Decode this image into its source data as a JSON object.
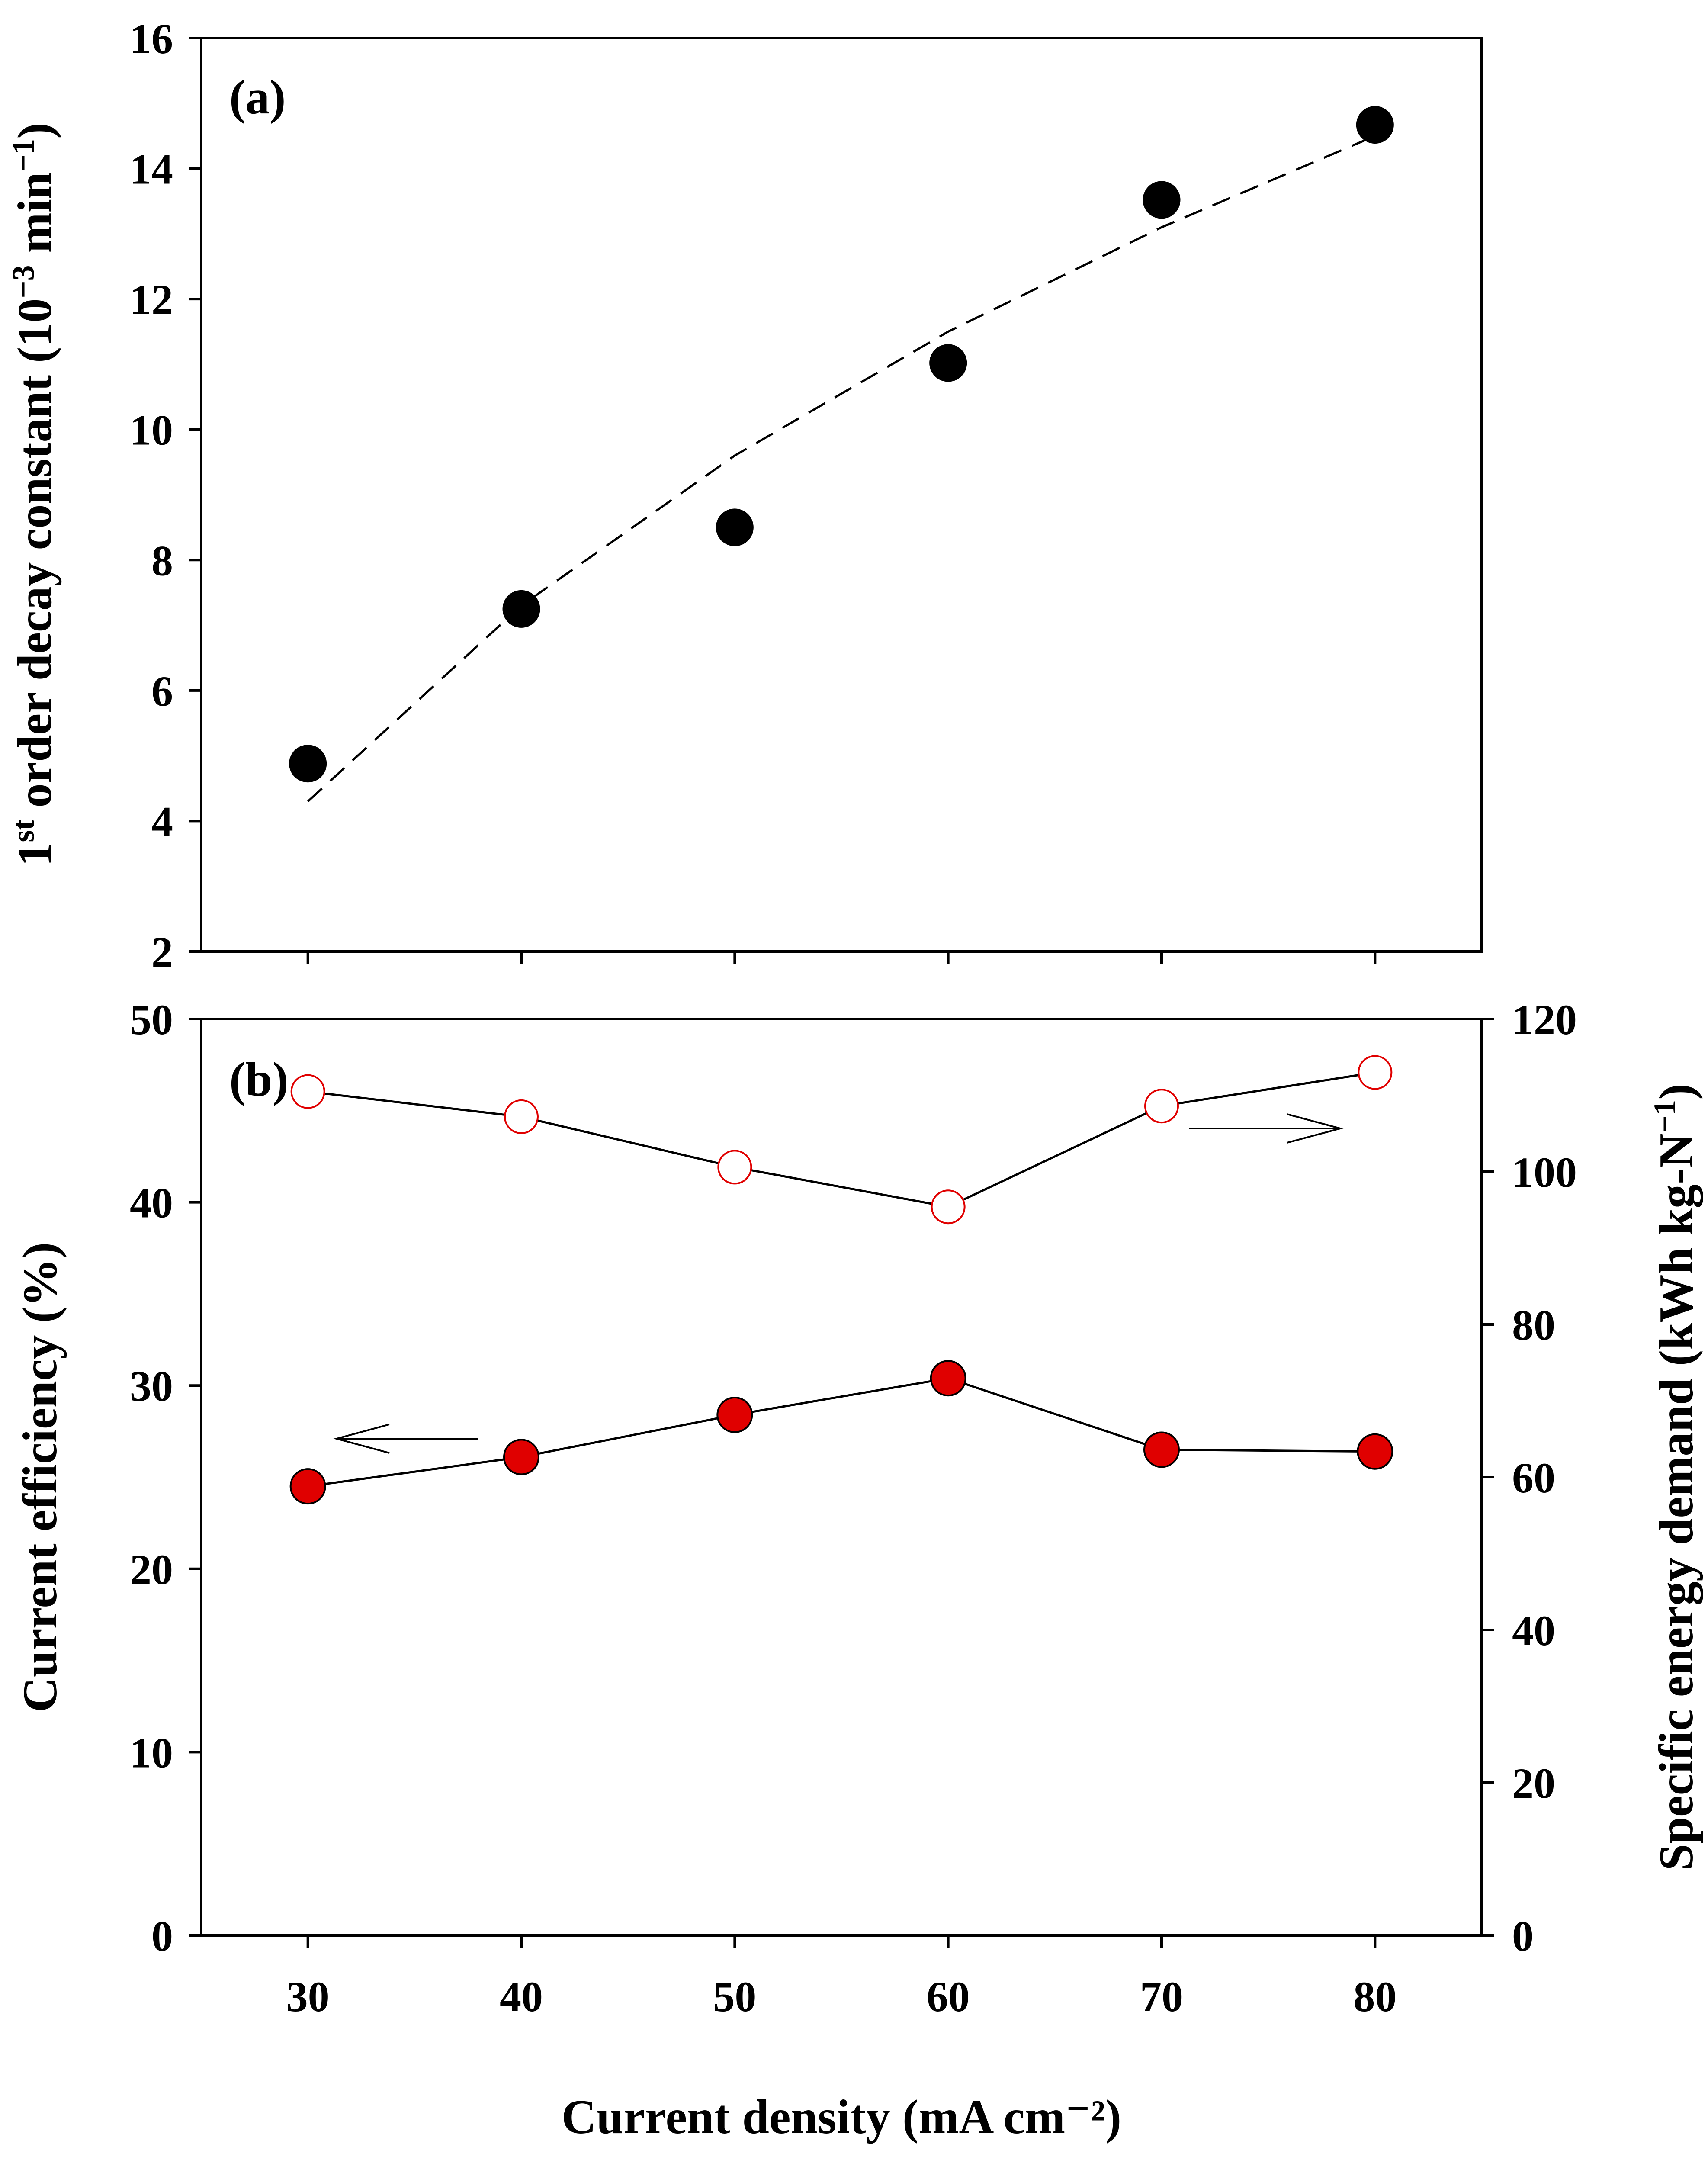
{
  "chart_data": [
    {
      "panel": "(a)",
      "type": "scatter",
      "title": "",
      "xlabel": "Current density (mA cm⁻²)",
      "ylabel_parts": [
        "1",
        "st",
        " order decay constant (10",
        "−3",
        " min",
        "−1",
        ")"
      ],
      "xlim": [
        25,
        85
      ],
      "ylim": [
        2,
        16
      ],
      "yticks": [
        2,
        4,
        6,
        8,
        10,
        12,
        14,
        16
      ],
      "x": [
        30,
        40,
        50,
        60,
        70,
        80
      ],
      "series": [
        {
          "name": "1st order decay constant",
          "marker": "filled-circle",
          "color": "#000000",
          "values": [
            4.88,
            7.25,
            8.5,
            11.02,
            13.52,
            14.67
          ]
        }
      ],
      "fit": {
        "name": "fit",
        "style": "dashed",
        "x": [
          30,
          40,
          50,
          60,
          70,
          80
        ],
        "values": [
          4.3,
          7.3,
          9.6,
          11.5,
          13.1,
          14.5
        ]
      }
    },
    {
      "panel": "(b)",
      "type": "line",
      "title": "",
      "xlabel": "Current density (mA cm⁻²)",
      "xticks": [
        30,
        40,
        50,
        60,
        70,
        80
      ],
      "xlim": [
        25,
        85
      ],
      "y_left": {
        "label": "Current efficiency (%)",
        "lim": [
          0,
          50
        ],
        "ticks": [
          0,
          10,
          20,
          30,
          40,
          50
        ]
      },
      "y_right": {
        "label_parts": [
          "Specific energy demand (kWh kg-N",
          "−1",
          ")"
        ],
        "lim": [
          0,
          120
        ],
        "ticks": [
          0,
          20,
          40,
          60,
          80,
          100,
          120
        ]
      },
      "x": [
        30,
        40,
        50,
        60,
        70,
        80
      ],
      "series": [
        {
          "name": "Current efficiency",
          "axis": "left",
          "marker": "filled-circle",
          "color": "#e00000",
          "values": [
            24.5,
            26.1,
            28.4,
            30.4,
            26.5,
            26.4
          ]
        },
        {
          "name": "Specific energy demand",
          "axis": "right",
          "marker": "open-circle",
          "color": "#e00000",
          "values": [
            110.5,
            107.2,
            100.6,
            95.4,
            108.6,
            113.0
          ]
        }
      ],
      "annotations": [
        {
          "type": "arrow",
          "direction": "left",
          "points_to": "Current efficiency axis"
        },
        {
          "type": "arrow",
          "direction": "right",
          "points_to": "Specific energy demand axis"
        }
      ]
    }
  ]
}
